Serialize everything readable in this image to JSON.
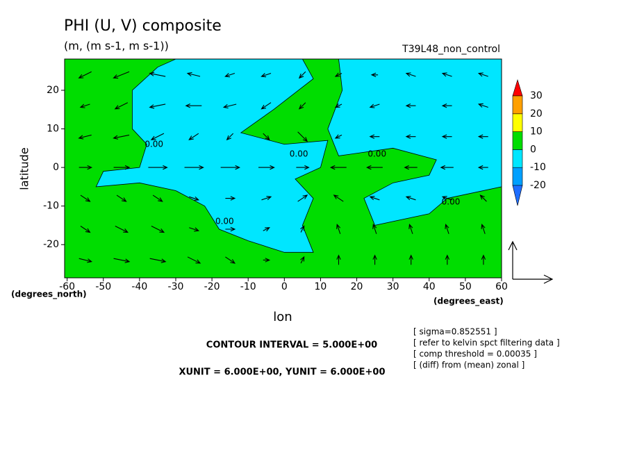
{
  "chart_data": {
    "type": "contour-vector",
    "title": "PHI (U, V) composite",
    "subtitle": "(m, (m s-1, m s-1))",
    "run_label": "T39L48_non_control",
    "x_label": "lon",
    "y_label": "latitude",
    "x_units": "(degrees_east)",
    "y_units": "(degrees_north)",
    "xlim": [
      -60.7,
      60
    ],
    "ylim": [
      -28.6,
      28.1
    ],
    "xticks": [
      -60,
      -50,
      -40,
      -30,
      -20,
      -10,
      0,
      10,
      20,
      30,
      40,
      50,
      60
    ],
    "yticks": [
      -20,
      -10,
      0,
      10,
      20
    ],
    "background": {
      "lower": 0,
      "upper": 10,
      "color": "#00dd00"
    },
    "contour_fill": [
      {
        "lower": -10,
        "upper": 0,
        "color": "#00e6ff",
        "polygon": [
          [
            -30,
            28.1
          ],
          [
            5,
            28.1
          ],
          [
            8,
            23
          ],
          [
            -3,
            15
          ],
          [
            -12,
            9
          ],
          [
            0,
            6
          ],
          [
            12,
            7
          ],
          [
            10,
            0
          ],
          [
            3,
            -3
          ],
          [
            8,
            -8
          ],
          [
            5,
            -15
          ],
          [
            8,
            -22
          ],
          [
            0,
            -22
          ],
          [
            -10,
            -19
          ],
          [
            -18,
            -16
          ],
          [
            -22,
            -10
          ],
          [
            -30,
            -6
          ],
          [
            -40,
            -4
          ],
          [
            -52,
            -5
          ],
          [
            -50,
            -1
          ],
          [
            -40,
            0
          ],
          [
            -38,
            6
          ],
          [
            -42,
            10
          ],
          [
            -42,
            20
          ],
          [
            -35,
            26
          ]
        ]
      },
      {
        "lower": -10,
        "upper": 0,
        "color": "#00e6ff",
        "polygon": [
          [
            15,
            28.1
          ],
          [
            60,
            28.1
          ],
          [
            60,
            -5
          ],
          [
            45,
            -8
          ],
          [
            40,
            -12
          ],
          [
            25,
            -15
          ],
          [
            22,
            -8
          ],
          [
            30,
            -4
          ],
          [
            40,
            -2
          ],
          [
            42,
            2
          ],
          [
            30,
            5
          ],
          [
            15,
            3
          ],
          [
            12,
            10
          ],
          [
            16,
            20
          ]
        ]
      }
    ],
    "contour_labels": [
      {
        "value": 0,
        "label": "0.00",
        "lon": -36,
        "lat": 6
      },
      {
        "value": 0,
        "label": "0.00",
        "lon": 4,
        "lat": 3.4
      },
      {
        "value": 0,
        "label": "0.00",
        "lon": 25.6,
        "lat": 3.4
      },
      {
        "value": 0,
        "label": "0.00",
        "lon": 46,
        "lat": -9
      },
      {
        "value": 0,
        "label": "0.00",
        "lon": -16.5,
        "lat": -14
      }
    ],
    "vectors": {
      "lon": [
        -55,
        -45,
        -35,
        -25,
        -15,
        -5,
        5,
        15,
        25,
        35,
        45,
        55
      ],
      "lat": [
        24,
        16,
        8,
        0,
        -8,
        -16,
        -24
      ],
      "u": [
        [
          -4,
          -5,
          -5,
          -4,
          -3,
          -3,
          -2,
          -2,
          -2,
          -3,
          -3,
          -3
        ],
        [
          -3,
          -4,
          -5,
          -5,
          -4,
          -3,
          -2,
          -2,
          -3,
          -3,
          -3,
          -3
        ],
        [
          -4,
          -5,
          -4,
          -3,
          -2,
          2,
          3,
          -2,
          -3,
          -3,
          -3,
          -3
        ],
        [
          4,
          5,
          6,
          6,
          6,
          5,
          4,
          -5,
          -5,
          -4,
          -4,
          -3
        ],
        [
          3,
          3,
          3,
          3,
          3,
          3,
          3,
          -3,
          -3,
          -3,
          -3,
          -2
        ],
        [
          3,
          4,
          4,
          3,
          3,
          2,
          1,
          -1,
          -1,
          -1,
          -1,
          -1
        ],
        [
          4,
          5,
          5,
          4,
          3,
          2,
          1,
          0,
          0,
          0,
          0,
          0
        ]
      ],
      "v": [
        [
          -2,
          -2,
          1,
          1,
          -1,
          -1,
          -2,
          -1,
          0,
          1,
          1,
          1
        ],
        [
          -1,
          -2,
          -1,
          0,
          -1,
          -2,
          -2,
          -1,
          -1,
          0,
          0,
          1
        ],
        [
          -1,
          -1,
          -2,
          -2,
          -2,
          -2,
          -3,
          -1,
          0,
          0,
          0,
          0
        ],
        [
          0,
          0,
          0,
          0,
          0,
          0,
          0,
          0,
          0,
          0,
          0,
          0
        ],
        [
          -2,
          -2,
          -2,
          -1,
          0,
          1,
          2,
          2,
          1,
          1,
          1,
          2
        ],
        [
          -2,
          -2,
          -2,
          -1,
          0,
          1,
          2,
          3,
          3,
          3,
          3,
          3
        ],
        [
          -1,
          -1,
          -1,
          -2,
          -2,
          0,
          2,
          3,
          3,
          3,
          3,
          3
        ]
      ]
    },
    "colorbar": {
      "levels": [
        -20,
        -10,
        0,
        10,
        20,
        30
      ],
      "colors": [
        "#1e6eff",
        "#00a0ff",
        "#00e6ff",
        "#00dd00",
        "#ffff00",
        "#ffa000",
        "#ff0000"
      ]
    },
    "contour_interval": "CONTOUR INTERVAL = 5.000E+00",
    "units_note": "XUNIT = 6.000E+00, YUNIT = 6.000E+00",
    "notes": [
      "[ sigma=0.852551 ]",
      "[ refer to kelvin spct filtering data ]",
      "[ comp threshold = 0.00035 ]",
      "[ (diff) from (mean) zonal ]"
    ]
  }
}
